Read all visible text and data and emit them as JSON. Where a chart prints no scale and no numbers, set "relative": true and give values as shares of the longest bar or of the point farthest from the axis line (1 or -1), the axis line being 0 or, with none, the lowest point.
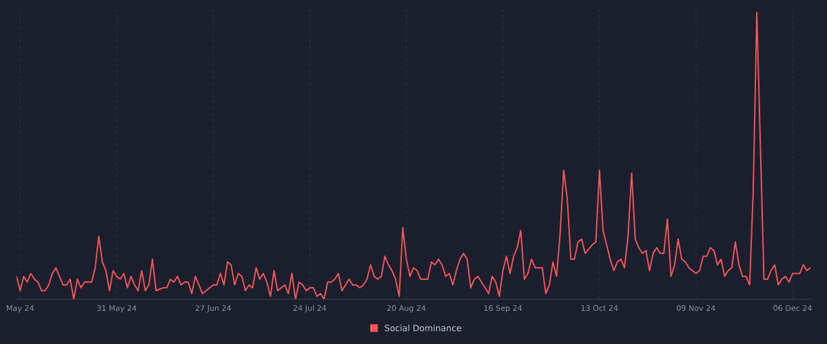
{
  "chart_data": {
    "type": "line",
    "relative": true,
    "x": [
      "2024-05-03",
      "2024-05-04",
      "2024-05-05",
      "2024-05-06",
      "2024-05-07",
      "2024-05-08",
      "2024-05-09",
      "2024-05-10",
      "2024-05-11",
      "2024-05-12",
      "2024-05-13",
      "2024-05-14",
      "2024-05-15",
      "2024-05-16",
      "2024-05-17",
      "2024-05-18",
      "2024-05-19",
      "2024-05-20",
      "2024-05-21",
      "2024-05-22",
      "2024-05-23",
      "2024-05-24",
      "2024-05-25",
      "2024-05-26",
      "2024-05-27",
      "2024-05-28",
      "2024-05-29",
      "2024-05-30",
      "2024-05-31",
      "2024-06-01",
      "2024-06-02",
      "2024-06-03",
      "2024-06-04",
      "2024-06-05",
      "2024-06-06",
      "2024-06-07",
      "2024-06-08",
      "2024-06-09",
      "2024-06-10",
      "2024-06-11",
      "2024-06-13",
      "2024-06-14",
      "2024-06-15",
      "2024-06-16",
      "2024-06-17",
      "2024-06-18",
      "2024-06-19",
      "2024-06-20",
      "2024-06-21",
      "2024-06-22",
      "2024-06-24",
      "2024-06-25",
      "2024-06-27",
      "2024-06-28",
      "2024-06-29",
      "2024-06-30",
      "2024-07-01",
      "2024-07-02",
      "2024-07-03",
      "2024-07-04",
      "2024-07-05",
      "2024-07-06",
      "2024-07-07",
      "2024-07-08",
      "2024-07-09",
      "2024-07-10",
      "2024-07-11",
      "2024-07-12",
      "2024-07-13",
      "2024-07-14",
      "2024-07-15",
      "2024-07-17",
      "2024-07-18",
      "2024-07-19",
      "2024-07-20",
      "2024-07-21",
      "2024-07-22",
      "2024-07-23",
      "2024-07-24",
      "2024-07-25",
      "2024-07-26",
      "2024-07-27",
      "2024-07-28",
      "2024-07-29",
      "2024-07-30",
      "2024-07-31",
      "2024-08-01",
      "2024-08-02",
      "2024-08-04",
      "2024-08-05",
      "2024-08-06",
      "2024-08-07",
      "2024-08-08",
      "2024-08-09",
      "2024-08-10",
      "2024-08-11",
      "2024-08-12",
      "2024-08-13",
      "2024-08-14",
      "2024-08-15",
      "2024-08-16",
      "2024-08-17",
      "2024-08-18",
      "2024-08-19",
      "2024-08-20",
      "2024-08-21",
      "2024-08-22",
      "2024-08-23",
      "2024-08-24",
      "2024-08-26",
      "2024-08-27",
      "2024-08-28",
      "2024-08-29",
      "2024-08-30",
      "2024-08-31",
      "2024-09-01",
      "2024-09-02",
      "2024-09-03",
      "2024-09-04",
      "2024-09-05",
      "2024-09-06",
      "2024-09-07",
      "2024-09-08",
      "2024-09-09",
      "2024-09-10",
      "2024-09-11",
      "2024-09-12",
      "2024-09-13",
      "2024-09-14",
      "2024-09-15",
      "2024-09-16",
      "2024-09-17",
      "2024-09-18",
      "2024-09-19",
      "2024-09-20",
      "2024-09-21",
      "2024-09-22",
      "2024-09-23",
      "2024-09-24",
      "2024-09-25",
      "2024-09-27",
      "2024-09-28",
      "2024-09-29",
      "2024-09-30",
      "2024-10-01",
      "2024-10-02",
      "2024-10-03",
      "2024-10-04",
      "2024-10-05",
      "2024-10-06",
      "2024-10-07",
      "2024-10-08",
      "2024-10-09",
      "2024-10-11",
      "2024-10-12",
      "2024-10-13",
      "2024-10-14",
      "2024-10-16",
      "2024-10-17",
      "2024-10-18",
      "2024-10-19",
      "2024-10-20",
      "2024-10-21",
      "2024-10-22",
      "2024-10-23",
      "2024-10-24",
      "2024-10-25",
      "2024-10-26",
      "2024-10-27",
      "2024-10-28",
      "2024-10-29",
      "2024-10-30",
      "2024-10-31",
      "2024-11-01",
      "2024-11-02",
      "2024-11-03",
      "2024-11-04",
      "2024-11-05",
      "2024-11-06",
      "2024-11-07",
      "2024-11-09",
      "2024-11-10",
      "2024-11-11",
      "2024-11-12",
      "2024-11-13",
      "2024-11-14",
      "2024-11-15",
      "2024-11-16",
      "2024-11-17",
      "2024-11-18",
      "2024-11-19",
      "2024-11-20",
      "2024-11-21",
      "2024-11-22",
      "2024-11-23",
      "2024-11-24",
      "2024-11-25",
      "2024-11-26",
      "2024-11-28",
      "2024-11-29",
      "2024-11-30",
      "2024-12-01",
      "2024-12-02",
      "2024-12-03",
      "2024-12-04",
      "2024-12-05",
      "2024-12-06",
      "2024-12-08",
      "2024-12-09",
      "2024-12-10",
      "2024-12-11"
    ],
    "series": [
      {
        "name": "Social Dominance",
        "color": "#f0575b",
        "values": [
          0.08,
          0.03,
          0.08,
          0.06,
          0.09,
          0.07,
          0.06,
          0.03,
          0.03,
          0.05,
          0.09,
          0.11,
          0.08,
          0.05,
          0.05,
          0.07,
          0.0,
          0.07,
          0.04,
          0.06,
          0.06,
          0.06,
          0.11,
          0.22,
          0.13,
          0.1,
          0.03,
          0.1,
          0.08,
          0.07,
          0.09,
          0.04,
          0.08,
          0.05,
          0.03,
          0.1,
          0.03,
          0.05,
          0.14,
          0.03,
          0.04,
          0.04,
          0.07,
          0.06,
          0.08,
          0.05,
          0.06,
          0.06,
          0.02,
          0.08,
          0.02,
          0.03,
          0.05,
          0.05,
          0.09,
          0.05,
          0.13,
          0.12,
          0.05,
          0.09,
          0.08,
          0.03,
          0.05,
          0.04,
          0.11,
          0.07,
          0.09,
          0.06,
          0.01,
          0.1,
          0.03,
          0.05,
          0.02,
          0.09,
          0.0,
          0.06,
          0.05,
          0.03,
          0.04,
          0.04,
          0.01,
          0.02,
          0.0,
          0.06,
          0.06,
          0.07,
          0.09,
          0.03,
          0.07,
          0.05,
          0.05,
          0.04,
          0.05,
          0.07,
          0.12,
          0.08,
          0.07,
          0.08,
          0.15,
          0.12,
          0.1,
          0.07,
          0.01,
          0.25,
          0.14,
          0.08,
          0.11,
          0.1,
          0.07,
          0.07,
          0.13,
          0.12,
          0.14,
          0.12,
          0.08,
          0.09,
          0.05,
          0.1,
          0.14,
          0.16,
          0.14,
          0.04,
          0.07,
          0.08,
          0.06,
          0.04,
          0.02,
          0.08,
          0.06,
          0.01,
          0.1,
          0.15,
          0.09,
          0.15,
          0.18,
          0.24,
          0.07,
          0.09,
          0.14,
          0.11,
          0.11,
          0.02,
          0.05,
          0.13,
          0.08,
          0.23,
          0.45,
          0.35,
          0.14,
          0.14,
          0.2,
          0.21,
          0.16,
          0.19,
          0.2,
          0.45,
          0.24,
          0.14,
          0.1,
          0.13,
          0.14,
          0.11,
          0.22,
          0.44,
          0.21,
          0.18,
          0.16,
          0.17,
          0.1,
          0.16,
          0.18,
          0.16,
          0.16,
          0.28,
          0.08,
          0.12,
          0.21,
          0.14,
          0.13,
          0.11,
          0.09,
          0.1,
          0.15,
          0.15,
          0.18,
          0.17,
          0.12,
          0.14,
          0.08,
          0.1,
          0.11,
          0.2,
          0.12,
          0.08,
          0.08,
          0.05,
          0.38,
          1,
          0.07,
          0.07,
          0.1,
          0.12,
          0.05,
          0.07,
          0.08,
          0.06,
          0.09,
          0.09,
          0.12,
          0.1,
          0.11
        ]
      }
    ],
    "xlim": [
      "2024-05-03",
      "2024-12-11"
    ],
    "xticks": [
      {
        "value": "2024-05-04",
        "label": "May 24"
      },
      {
        "value": "2024-05-31",
        "label": "31 May 24"
      },
      {
        "value": "2024-06-27",
        "label": "27 Jun 24"
      },
      {
        "value": "2024-07-24",
        "label": "24 Jul 24"
      },
      {
        "value": "2024-08-20",
        "label": "20 Aug 24"
      },
      {
        "value": "2024-09-16",
        "label": "16 Sep 24"
      },
      {
        "value": "2024-10-13",
        "label": "13 Oct 24"
      },
      {
        "value": "2024-11-09",
        "label": "09 Nov 24"
      },
      {
        "value": "2024-12-06",
        "label": "06 Dec 24"
      }
    ],
    "grid": "x",
    "legend": "bottom",
    "marker": "none",
    "line_style": "solid"
  }
}
